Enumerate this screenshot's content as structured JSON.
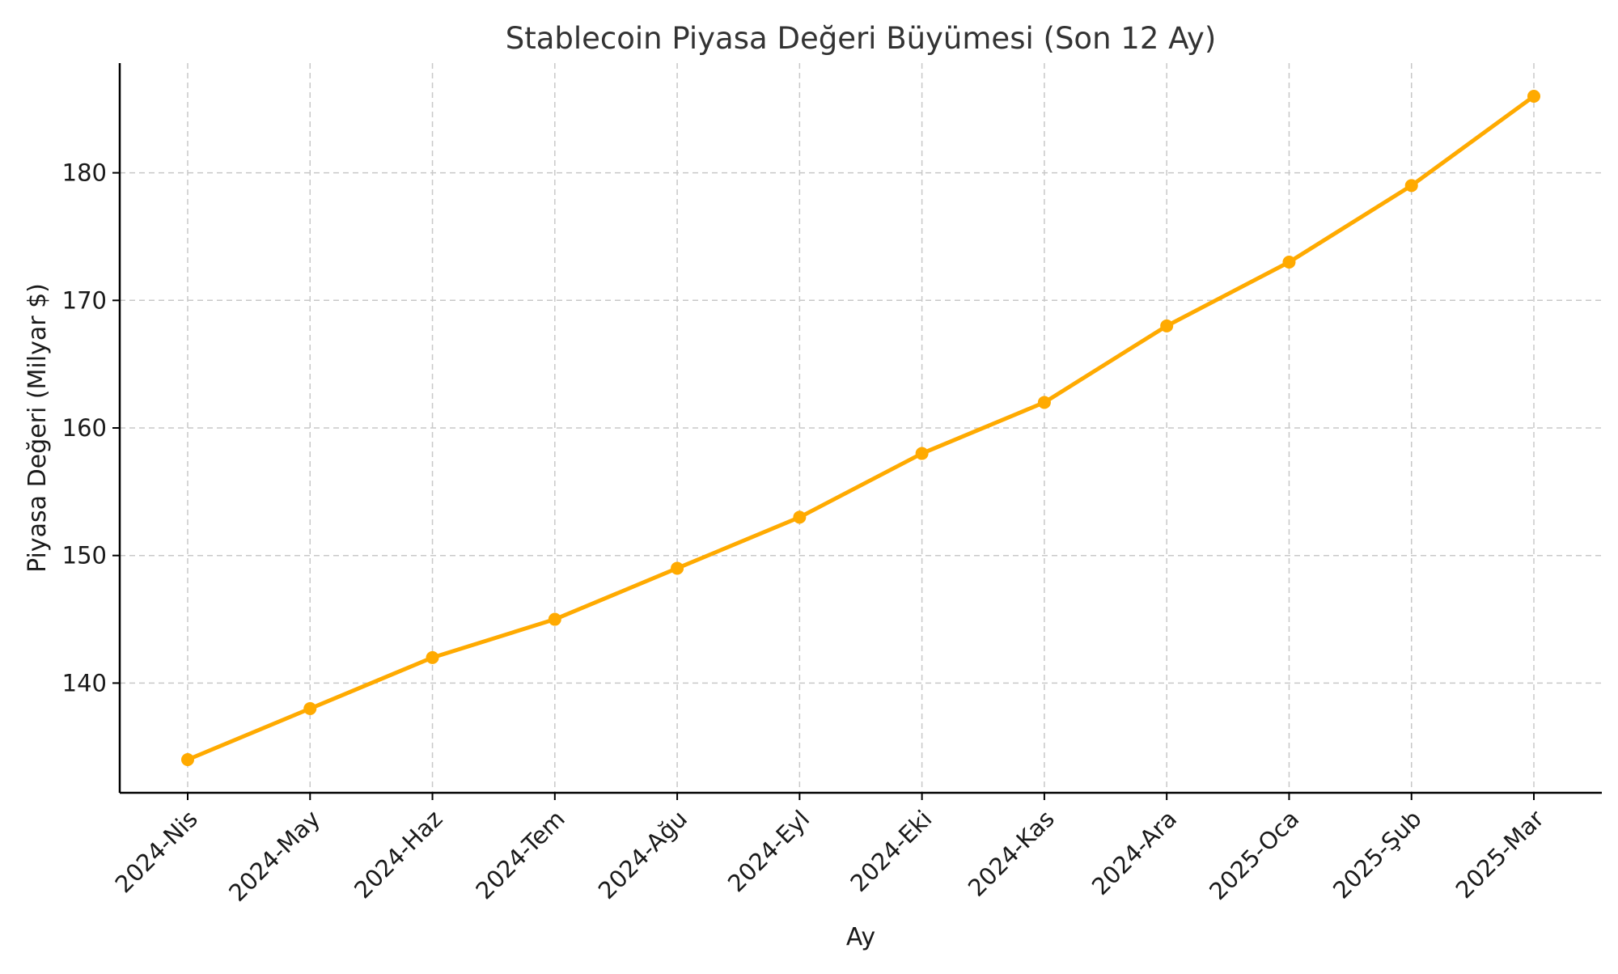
{
  "chart_data": {
    "type": "line",
    "title": "Stablecoin Piyasa Değeri Büyümesi (Son 12 Ay)",
    "xlabel": "Ay",
    "ylabel": "Piyasa Değeri (Milyar $)",
    "categories": [
      "2024-Nis",
      "2024-May",
      "2024-Haz",
      "2024-Tem",
      "2024-Ağu",
      "2024-Eyl",
      "2024-Eki",
      "2024-Kas",
      "2024-Ara",
      "2025-Oca",
      "2025-Şub",
      "2025-Mar"
    ],
    "series": [
      {
        "values": [
          134,
          138,
          142,
          145,
          149,
          153,
          158,
          162,
          168,
          173,
          179,
          186
        ],
        "color": "#FFAA00"
      }
    ],
    "ylim": [
      131.4,
      188.6
    ],
    "yticks": [
      140,
      150,
      160,
      170,
      180
    ],
    "grid": true,
    "marker": "circle"
  }
}
